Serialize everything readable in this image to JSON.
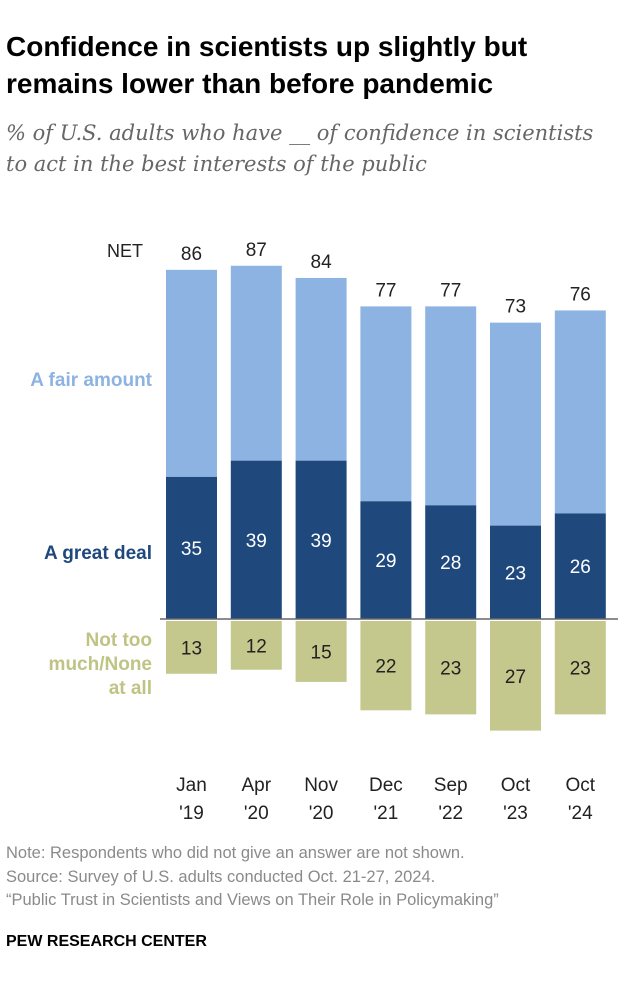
{
  "title": "Confidence in scientists up slightly but remains lower than before pandemic",
  "subtitle": "% of U.S. adults who have __ of confidence in scientists to act in the best interests of the public",
  "chart_data": {
    "type": "bar",
    "stacked": true,
    "categories": [
      [
        "Jan",
        "'19"
      ],
      [
        "Apr",
        "'20"
      ],
      [
        "Nov",
        "'20"
      ],
      [
        "Dec",
        "'21"
      ],
      [
        "Sep",
        "'22"
      ],
      [
        "Oct",
        "'23"
      ],
      [
        "Oct",
        "'24"
      ]
    ],
    "series": [
      {
        "name": "A great deal",
        "values": [
          35,
          39,
          39,
          29,
          28,
          23,
          26
        ],
        "color": "#1f497d"
      },
      {
        "name": "A fair amount",
        "values": [
          51,
          48,
          45,
          48,
          49,
          50,
          50
        ],
        "color": "#8db3e2"
      },
      {
        "name": "Not too much/None at all",
        "values": [
          13,
          12,
          15,
          22,
          23,
          27,
          23
        ],
        "color": "#c4c88d",
        "negative": true
      }
    ],
    "net_label": "NET",
    "net": [
      86,
      87,
      84,
      77,
      77,
      73,
      76
    ],
    "series_labels": {
      "fair": "A fair amount",
      "great": "A great deal",
      "none": [
        "Not too",
        "much/None",
        "at all"
      ]
    }
  },
  "notes": [
    "Note: Respondents who did not give an answer are not shown.",
    "Source: Survey of U.S. adults conducted Oct. 21-27, 2024.",
    "“Public Trust in Scientists and Views on Their Role in Policymaking”"
  ],
  "brand": "PEW RESEARCH CENTER"
}
